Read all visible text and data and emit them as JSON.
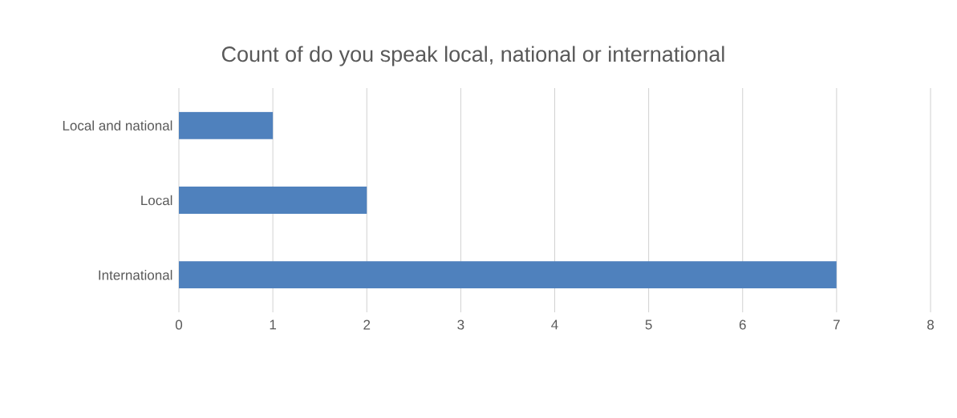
{
  "chart_data": {
    "type": "bar",
    "orientation": "horizontal",
    "title": "Count of do you speak local, national or international",
    "categories": [
      "Local and national",
      "Local",
      "International"
    ],
    "values": [
      1,
      2,
      7
    ],
    "color": "#4f81bd",
    "xlim": [
      0,
      8
    ],
    "xticks": [
      0,
      1,
      2,
      3,
      4,
      5,
      6,
      7,
      8
    ],
    "grid": "x"
  }
}
